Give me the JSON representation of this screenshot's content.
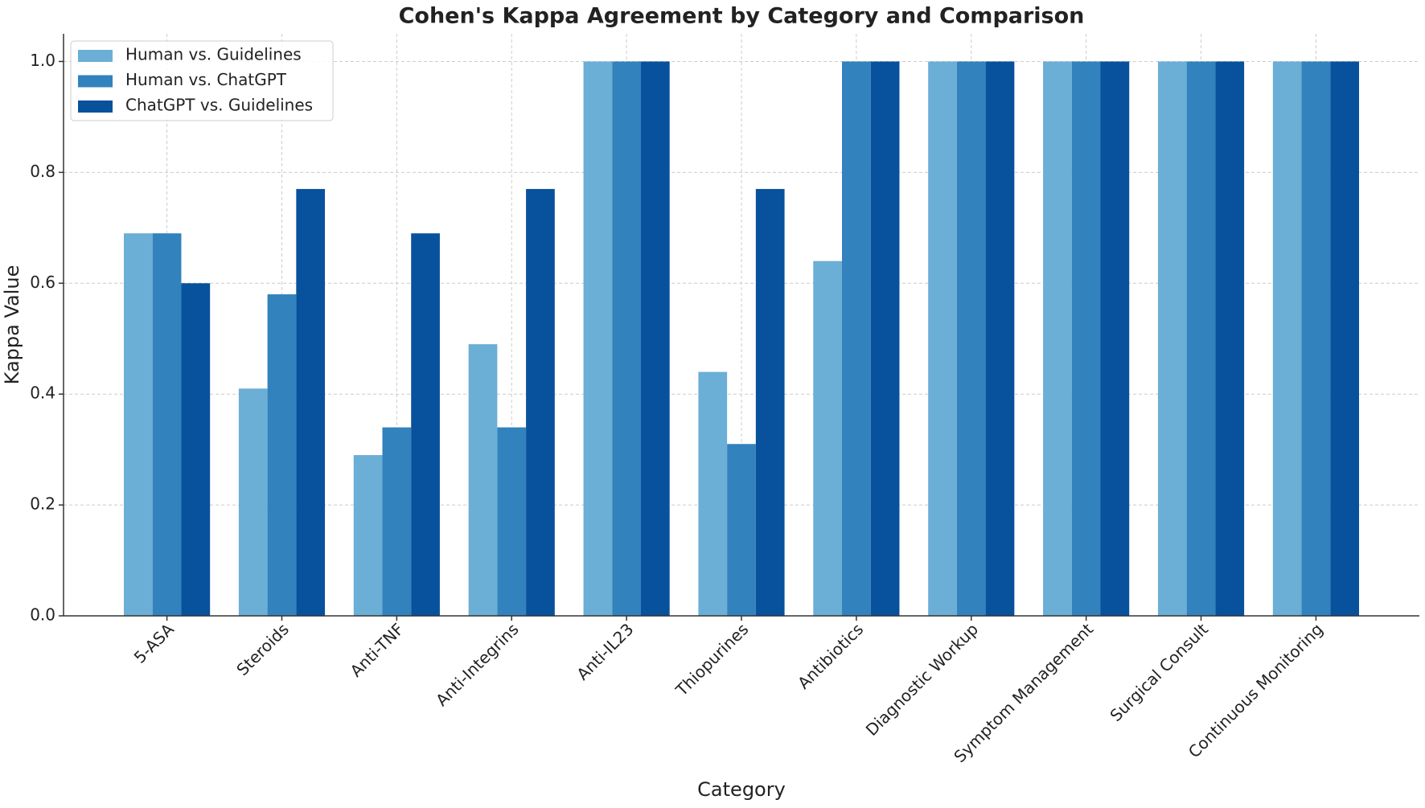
{
  "chart_data": {
    "type": "bar",
    "title": "Cohen's Kappa Agreement by Category and Comparison",
    "x_label": "Category",
    "y_label": "Kappa Value",
    "categories": [
      "5-ASA",
      "Steroids",
      "Anti-TNF",
      "Anti-Integrins",
      "Anti-IL23",
      "Thiopurines",
      "Antibiotics",
      "Diagnostic Workup",
      "Symptom Management",
      "Surgical Consult",
      "Continuous Monitoring"
    ],
    "series": [
      {
        "name": "Human vs. Guidelines",
        "color": "#6baed6",
        "values": [
          0.69,
          0.41,
          0.29,
          0.49,
          1.0,
          0.44,
          0.64,
          1.0,
          1.0,
          1.0,
          1.0
        ]
      },
      {
        "name": "Human vs. ChatGPT",
        "color": "#3182bd",
        "values": [
          0.69,
          0.58,
          0.34,
          0.34,
          1.0,
          0.31,
          1.0,
          1.0,
          1.0,
          1.0,
          1.0
        ]
      },
      {
        "name": "ChatGPT vs. Guidelines",
        "color": "#08519c",
        "values": [
          0.6,
          0.77,
          0.69,
          0.77,
          1.0,
          0.77,
          1.0,
          1.0,
          1.0,
          1.0,
          1.0
        ]
      }
    ],
    "ylim": [
      0,
      1.05
    ],
    "yticks": [
      {
        "value": 0,
        "label": "0.0"
      },
      {
        "value": 0.2,
        "label": "0.2"
      },
      {
        "value": 0.4,
        "label": "0.4"
      },
      {
        "value": 0.6,
        "label": "0.6"
      },
      {
        "value": 0.8,
        "label": "0.8"
      },
      {
        "value": 1,
        "label": "1.0"
      }
    ],
    "grid": true,
    "legend": "upper-left"
  }
}
